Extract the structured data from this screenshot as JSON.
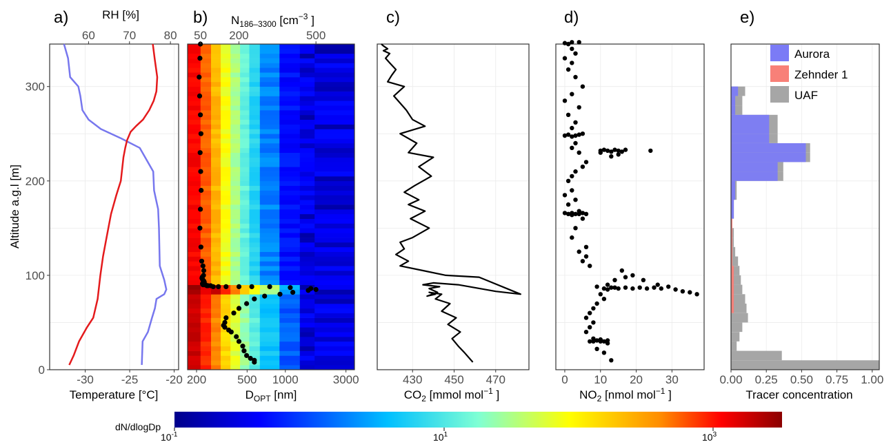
{
  "chart_data": [
    {
      "panel_label": "a)",
      "type": "line",
      "ylabel": "Altitude a.g.l [m]",
      "ylim": [
        0,
        345
      ],
      "yticks": [
        "0",
        "100",
        "200",
        "300"
      ],
      "xlabel": "Temperature [°C]",
      "xlabel_color": "#e41a1c",
      "xlim": [
        -34,
        -19.5
      ],
      "xticks": [
        "-30",
        "-25",
        "-20"
      ],
      "top_xlabel": "RH [%]",
      "top_xlabel_color": "#1f1fff",
      "top_xlim": [
        50.5,
        82
      ],
      "top_xticks": [
        "60",
        "70",
        "80"
      ],
      "series": [
        {
          "color": "#e41a1c",
          "axis": "temperature",
          "x": [
            -31.8,
            -31.3,
            -30.7,
            -29.8,
            -29.1,
            -28.6,
            -28.3,
            -28.0,
            -27.6,
            -27.1,
            -26.5,
            -26.0,
            -25.7,
            -25.5,
            -25.3,
            -24.9,
            -24.3,
            -23.5,
            -22.8,
            -22.3,
            -22.0,
            -21.9,
            -22.2,
            -22.4
          ],
          "y": [
            5,
            15,
            30,
            45,
            55,
            75,
            100,
            120,
            140,
            165,
            185,
            200,
            225,
            235,
            243,
            252,
            258,
            265,
            275,
            285,
            295,
            310,
            330,
            345
          ]
        },
        {
          "color": "#7777ee",
          "axis": "rh",
          "x": [
            73.0,
            73.2,
            74.5,
            75.5,
            76.2,
            76.6,
            78.5,
            79.0,
            78.5,
            77.4,
            77.2,
            77.0,
            76.5,
            76.0,
            75.8,
            72.5,
            68.0,
            63.0,
            60.0,
            58.5,
            58.0,
            57.5,
            55.5,
            55.0,
            54.0
          ],
          "y": [
            5,
            30,
            40,
            55,
            65,
            75,
            80,
            85,
            95,
            110,
            150,
            170,
            180,
            190,
            210,
            235,
            245,
            255,
            265,
            275,
            290,
            300,
            310,
            330,
            345
          ]
        }
      ]
    },
    {
      "panel_label": "b)",
      "type": "heatmap",
      "xlabel": "D",
      "xlabel_sub": "OPT",
      "xlabel_unit": " [nm]",
      "x_log": true,
      "xlim": [
        170,
        3500
      ],
      "xticks": [
        "200",
        "500",
        "1000",
        "3000"
      ],
      "top_xlabel": "N",
      "top_xlabel_sub": "186–3300",
      "top_xlabel_unit": " [cm",
      "top_xlabel_sup": "−3",
      "top_xlabel_end": " ]",
      "top_xlim": [
        0,
        650
      ],
      "top_xticks": [
        "50",
        "200",
        "500"
      ],
      "ylim": [
        0,
        345
      ],
      "bin_edges_nm": [
        170,
        215,
        260,
        310,
        370,
        440,
        520,
        630,
        900,
        1300,
        1700,
        3500
      ],
      "profile": {
        "color": "#000000",
        "x": [
          50,
          48,
          45,
          47,
          50,
          52,
          49,
          51,
          53,
          50,
          48,
          52,
          55,
          60,
          63,
          62,
          57,
          56,
          58,
          60,
          63,
          65,
          60,
          58,
          60,
          65,
          70,
          75,
          80,
          90,
          100,
          120,
          150,
          200,
          250,
          320,
          400,
          480,
          500,
          470,
          410,
          360,
          300,
          260,
          230,
          200,
          180,
          150,
          145,
          140,
          145,
          160,
          170,
          190,
          200,
          215,
          220,
          230,
          245,
          260,
          260
        ],
        "y": [
          345,
          330,
          310,
          290,
          270,
          250,
          230,
          210,
          190,
          170,
          150,
          130,
          115,
          110,
          105,
          100,
          98,
          97,
          96,
          95,
          94,
          93,
          92,
          91,
          90,
          90,
          90,
          89,
          89,
          89,
          88,
          88,
          88,
          88,
          88,
          88,
          87,
          86,
          85,
          84,
          82,
          80,
          78,
          75,
          70,
          65,
          60,
          55,
          50,
          47,
          45,
          42,
          40,
          35,
          30,
          25,
          20,
          15,
          12,
          10,
          8
        ]
      }
    },
    {
      "panel_label": "c)",
      "type": "line",
      "xlabel": "CO",
      "xlabel_sub": "2",
      "xlabel_unit": " [mmol mol",
      "xlabel_sup": "−1",
      "xlabel_end": " ]",
      "xlim": [
        413,
        486
      ],
      "xticks": [
        "430",
        "450",
        "470"
      ],
      "ylim": [
        0,
        345
      ],
      "series": [
        {
          "color": "#000000",
          "x": [
            459,
            455,
            452,
            449,
            453,
            447,
            451,
            444,
            448,
            441,
            444,
            438,
            441,
            437,
            442,
            438,
            443,
            435,
            440,
            452,
            470,
            482,
            462,
            446,
            435,
            424,
            428,
            422,
            426,
            424,
            430,
            434,
            438,
            429,
            436,
            428,
            433,
            426,
            431,
            439,
            433,
            440,
            428,
            432,
            424,
            436,
            430,
            427,
            425,
            421,
            426,
            418,
            420,
            422,
            419,
            417,
            419,
            416,
            418,
            416,
            415
          ],
          "y": [
            8,
            18,
            25,
            33,
            40,
            48,
            55,
            62,
            70,
            75,
            80,
            82,
            80,
            78,
            82,
            86,
            88,
            90,
            92,
            90,
            83,
            80,
            98,
            100,
            105,
            110,
            115,
            122,
            128,
            135,
            140,
            145,
            150,
            160,
            168,
            175,
            180,
            188,
            195,
            205,
            215,
            225,
            230,
            240,
            250,
            258,
            265,
            275,
            280,
            290,
            300,
            305,
            312,
            318,
            325,
            330,
            335,
            338,
            340,
            343,
            345
          ]
        }
      ]
    },
    {
      "panel_label": "d)",
      "type": "scatter",
      "xlabel": "NO",
      "xlabel_sub": "2",
      "xlabel_unit": " [nmol mol",
      "xlabel_sup": "−1",
      "xlabel_end": " ]",
      "xlim": [
        -2.5,
        39
      ],
      "xticks": [
        "0",
        "10",
        "20",
        "30"
      ],
      "ylim": [
        0,
        345
      ],
      "series": [
        {
          "color": "#000000",
          "x": [
            13,
            11,
            9,
            12,
            10,
            8,
            7,
            9,
            8,
            10,
            12,
            11,
            6,
            7,
            8,
            6,
            7,
            8,
            9,
            11,
            10,
            12,
            14,
            9,
            11,
            13,
            15,
            17,
            19,
            21,
            23,
            25,
            27,
            29,
            31,
            33,
            35,
            37,
            12,
            14,
            17,
            19,
            22,
            26,
            16,
            7,
            5,
            6,
            4,
            6,
            2,
            3,
            5,
            1,
            2,
            4,
            0,
            2,
            3,
            5,
            6,
            4,
            1,
            3,
            0,
            2,
            1,
            2,
            3,
            5,
            6,
            4,
            2,
            3,
            10,
            11,
            12,
            13,
            14,
            15,
            16,
            17,
            24,
            10,
            13,
            15,
            0,
            1,
            2,
            3,
            4,
            5,
            2,
            3,
            1,
            4,
            0,
            2,
            5,
            3,
            1,
            2,
            0,
            3,
            2,
            1,
            4,
            2,
            0,
            1
          ],
          "y": [
            10,
            18,
            22,
            28,
            30,
            30,
            30,
            31,
            33,
            32,
            31,
            30,
            40,
            45,
            50,
            55,
            60,
            65,
            70,
            75,
            80,
            85,
            87,
            88,
            86,
            87,
            86,
            87,
            86,
            87,
            86,
            87,
            86,
            88,
            85,
            83,
            82,
            80,
            90,
            95,
            98,
            100,
            95,
            90,
            105,
            110,
            115,
            120,
            125,
            130,
            140,
            150,
            160,
            165,
            166,
            165,
            166,
            164,
            165,
            166,
            165,
            168,
            175,
            180,
            185,
            190,
            200,
            205,
            210,
            215,
            220,
            230,
            235,
            240,
            232,
            233,
            232,
            231,
            233,
            232,
            231,
            233,
            232,
            230,
            226,
            228,
            248,
            249,
            247,
            248,
            249,
            250,
            256,
            262,
            270,
            278,
            285,
            292,
            300,
            310,
            318,
            325,
            330,
            335,
            340,
            345,
            347,
            347,
            346,
            345
          ]
        }
      ]
    },
    {
      "panel_label": "e)",
      "type": "bar",
      "orientation": "horizontal",
      "xlabel": "Tracer concentration",
      "xlim": [
        0,
        1.05
      ],
      "xticks": [
        "0.00",
        "0.25",
        "0.50",
        "0.75",
        "1.00"
      ],
      "ylim": [
        0,
        345
      ],
      "bin_width": 10,
      "legend": "top-right",
      "series": [
        {
          "name": "Aurora",
          "color": "#7b7bf6",
          "values": [
            0,
            0,
            0,
            0,
            0,
            0,
            0,
            0,
            0,
            0,
            0,
            0,
            0,
            0,
            0,
            0,
            0.02,
            0.02,
            0.03,
            0.03,
            0.33,
            0.33,
            0.53,
            0.53,
            0.27,
            0.27,
            0.27,
            0.03,
            0.03,
            0.05,
            0,
            0,
            0,
            0,
            0
          ]
        },
        {
          "name": "Zehnder 1",
          "color": "#f88078",
          "values": [
            0,
            0,
            0,
            0,
            0,
            0,
            0.02,
            0.02,
            0.02,
            0.02,
            0.02,
            0.01,
            0.01,
            0.01,
            0.01,
            0.01,
            0,
            0.01,
            0.01,
            0.01,
            0,
            0,
            0.01,
            0.01,
            0,
            0,
            0,
            0,
            0,
            0,
            0,
            0,
            0,
            0,
            0
          ]
        },
        {
          "name": "UAF",
          "color": "#a6a6a6",
          "values": [
            1.05,
            0.36,
            0.04,
            0.06,
            0.08,
            0.12,
            0.11,
            0.1,
            0.08,
            0.07,
            0.06,
            0.05,
            0.03,
            0.02,
            0.02,
            0.01,
            0.02,
            0.02,
            0.04,
            0.04,
            0.37,
            0.37,
            0.56,
            0.56,
            0.33,
            0.33,
            0.33,
            0.08,
            0.08,
            0.1,
            0,
            0,
            0,
            0,
            0
          ]
        }
      ]
    }
  ],
  "colorbar": {
    "label": "dN/dlogDp",
    "ticks": [
      {
        "base": "10",
        "exp": "-1"
      },
      {
        "base": "10",
        "exp": "1"
      },
      {
        "base": "10",
        "exp": "3"
      }
    ],
    "colors": [
      "#00008b",
      "#0000ff",
      "#00bfff",
      "#7fffd4",
      "#ffff00",
      "#ff8c00",
      "#ff0000",
      "#8b0000"
    ]
  }
}
